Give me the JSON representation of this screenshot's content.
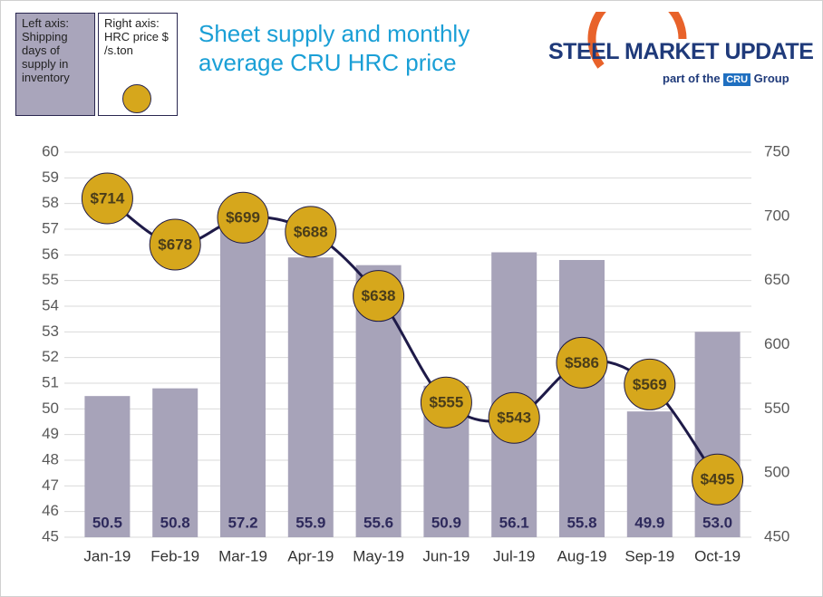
{
  "chart_data": {
    "type": "combo",
    "title": "Sheet supply and monthly average CRU HRC price",
    "categories": [
      "Jan-19",
      "Feb-19",
      "Mar-19",
      "Apr-19",
      "May-19",
      "Jun-19",
      "Jul-19",
      "Aug-19",
      "Sep-19",
      "Oct-19"
    ],
    "series": [
      {
        "name": "Left axis: Shipping days of supply in inventory",
        "type": "bar",
        "color": "#a7a3b9",
        "values": [
          50.5,
          50.8,
          57.2,
          55.9,
          55.6,
          50.9,
          56.1,
          55.8,
          49.9,
          53.0
        ],
        "value_labels": [
          "50.5",
          "50.8",
          "57.2",
          "55.9",
          "55.6",
          "50.9",
          "56.1",
          "55.8",
          "49.9",
          "53.0"
        ]
      },
      {
        "name": "Right axis: HRC price $ /s.ton",
        "type": "line",
        "axis": "y2",
        "color": "#1e1a48",
        "marker_color": "#d6a71c",
        "values": [
          714,
          678,
          699,
          688,
          638,
          555,
          543,
          586,
          569,
          495
        ],
        "value_labels": [
          "$714",
          "$678",
          "$699",
          "$688",
          "$638",
          "$555",
          "$543",
          "$586",
          "$569",
          "$495"
        ]
      }
    ],
    "ylim": [
      45,
      60
    ],
    "yticks": [
      45,
      46,
      47,
      48,
      49,
      50,
      51,
      52,
      53,
      54,
      55,
      56,
      57,
      58,
      59,
      60
    ],
    "y2lim": [
      450,
      750
    ],
    "y2ticks": [
      450,
      500,
      550,
      600,
      650,
      700,
      750
    ],
    "grid": true
  },
  "logo": {
    "name": "STEEL MARKET UPDATE",
    "tagline": "part of the",
    "badge": "CRU",
    "group": "Group"
  }
}
